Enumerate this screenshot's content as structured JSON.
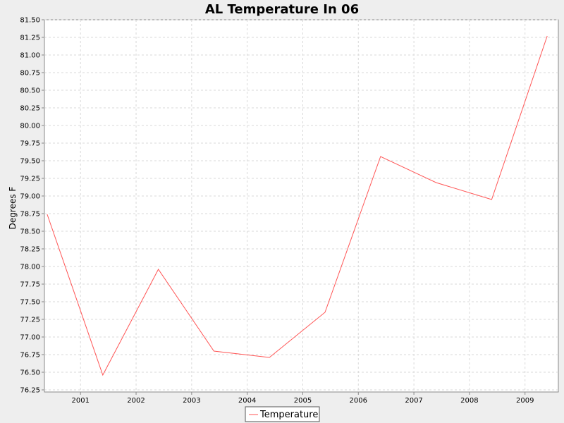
{
  "chart_data": {
    "type": "line",
    "title": "AL Temperature In 06",
    "xlabel": "",
    "ylabel": "Degrees F",
    "x": [
      2000.4,
      2001.4,
      2002.4,
      2003.4,
      2004.4,
      2005.4,
      2006.4,
      2007.4,
      2008.4,
      2009.4
    ],
    "xlim": [
      2000.35,
      2009.6
    ],
    "xticks": [
      "2001",
      "2002",
      "2003",
      "2004",
      "2005",
      "2006",
      "2007",
      "2008",
      "2009"
    ],
    "ylim": [
      76.22,
      81.5
    ],
    "yticks": [
      "76.25",
      "76.50",
      "76.75",
      "77.00",
      "77.25",
      "77.50",
      "77.75",
      "78.00",
      "78.25",
      "78.50",
      "78.75",
      "79.00",
      "79.25",
      "79.50",
      "79.75",
      "80.00",
      "80.25",
      "80.50",
      "80.75",
      "81.00",
      "81.25",
      "81.50"
    ],
    "grid": true,
    "legend_position": "bottom",
    "series": [
      {
        "name": "Temperature",
        "color": "#ff5555",
        "values": [
          78.74,
          76.46,
          77.96,
          76.8,
          76.71,
          77.35,
          79.56,
          79.19,
          78.95,
          81.27
        ]
      }
    ]
  }
}
